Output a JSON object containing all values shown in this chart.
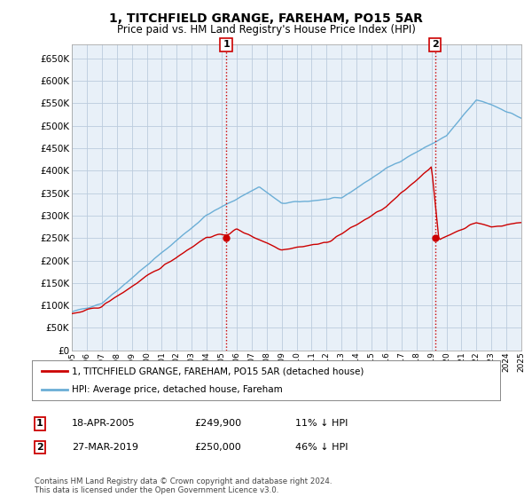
{
  "title": "1, TITCHFIELD GRANGE, FAREHAM, PO15 5AR",
  "subtitle": "Price paid vs. HM Land Registry's House Price Index (HPI)",
  "ylim": [
    0,
    680000
  ],
  "yticks": [
    0,
    50000,
    100000,
    150000,
    200000,
    250000,
    300000,
    350000,
    400000,
    450000,
    500000,
    550000,
    600000,
    650000
  ],
  "x_start_year": 1995,
  "x_end_year": 2025,
  "sale1_year": 2005.3,
  "sale1_price": 249900,
  "sale2_year": 2019.25,
  "sale2_price": 250000,
  "legend_line1": "1, TITCHFIELD GRANGE, FAREHAM, PO15 5AR (detached house)",
  "legend_line2": "HPI: Average price, detached house, Fareham",
  "table_row1": [
    "1",
    "18-APR-2005",
    "£249,900",
    "11% ↓ HPI"
  ],
  "table_row2": [
    "2",
    "27-MAR-2019",
    "£250,000",
    "46% ↓ HPI"
  ],
  "footnote": "Contains HM Land Registry data © Crown copyright and database right 2024.\nThis data is licensed under the Open Government Licence v3.0.",
  "hpi_color": "#6baed6",
  "property_color": "#cc0000",
  "vline_color": "#cc0000",
  "chart_bg": "#e8f0f8",
  "bg_color": "#ffffff",
  "grid_color": "#bbccdd"
}
